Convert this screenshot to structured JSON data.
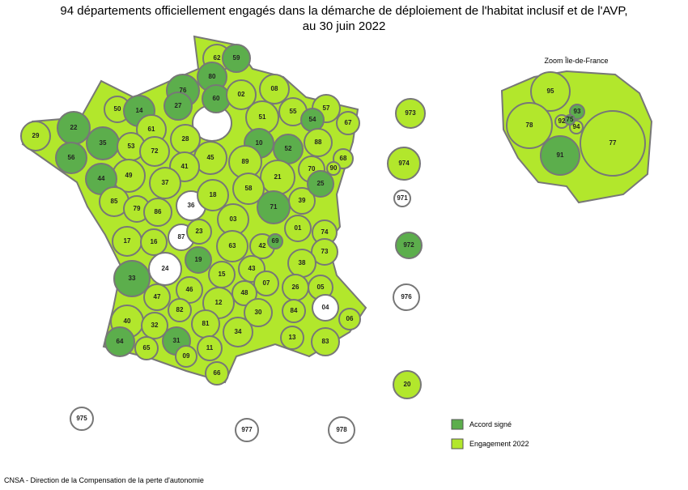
{
  "title": [
    "94 départements officiellement engagés dans la démarche de déploiement de l'habitat inclusif et de l'AVP,",
    "au 30 juin 2022"
  ],
  "zoom_label": "Zoom Île-de-France",
  "legend": [
    {
      "label": "Accord signé",
      "color": "#5cae4c"
    },
    {
      "label": "Engagement 2022",
      "color": "#b2e72c"
    }
  ],
  "source": "CNSA - Direction de la Compensation de la perte d'autonomie",
  "departments": [
    {
      "code": "62",
      "color": "#b2e72c"
    },
    {
      "code": "59",
      "color": "#5cae4c"
    },
    {
      "code": "80",
      "color": "#5cae4c"
    },
    {
      "code": "76",
      "color": "#5cae4c"
    },
    {
      "code": "60",
      "color": "#5cae4c"
    },
    {
      "code": "02",
      "color": "#b2e72c"
    },
    {
      "code": "08",
      "color": "#b2e72c"
    },
    {
      "code": "50",
      "color": "#b2e72c"
    },
    {
      "code": "14",
      "color": "#5cae4c"
    },
    {
      "code": "27",
      "color": "#5cae4c"
    },
    {
      "code": "55",
      "color": "#b2e72c"
    },
    {
      "code": "57",
      "color": "#b2e72c"
    },
    {
      "code": "54",
      "color": "#5cae4c"
    },
    {
      "code": "67",
      "color": "#b2e72c"
    },
    {
      "code": "22",
      "color": "#5cae4c"
    },
    {
      "code": "29",
      "color": "#b2e72c"
    },
    {
      "code": "61",
      "color": "#b2e72c"
    },
    {
      "code": "28",
      "color": "#b2e72c"
    },
    {
      "code": "51",
      "color": "#b2e72c"
    },
    {
      "code": "10",
      "color": "#5cae4c"
    },
    {
      "code": "52",
      "color": "#5cae4c"
    },
    {
      "code": "88",
      "color": "#b2e72c"
    },
    {
      "code": "35",
      "color": "#5cae4c"
    },
    {
      "code": "53",
      "color": "#b2e72c"
    },
    {
      "code": "72",
      "color": "#b2e72c"
    },
    {
      "code": "45",
      "color": "#b2e72c"
    },
    {
      "code": "89",
      "color": "#b2e72c"
    },
    {
      "code": "70",
      "color": "#b2e72c"
    },
    {
      "code": "68",
      "color": "#b2e72c"
    },
    {
      "code": "90",
      "color": "#b2e72c"
    },
    {
      "code": "56",
      "color": "#5cae4c"
    },
    {
      "code": "49",
      "color": "#b2e72c"
    },
    {
      "code": "41",
      "color": "#b2e72c"
    },
    {
      "code": "21",
      "color": "#b2e72c"
    },
    {
      "code": "44",
      "color": "#5cae4c"
    },
    {
      "code": "37",
      "color": "#b2e72c"
    },
    {
      "code": "36",
      "color": "#ffffff"
    },
    {
      "code": "18",
      "color": "#b2e72c"
    },
    {
      "code": "58",
      "color": "#b2e72c"
    },
    {
      "code": "39",
      "color": "#b2e72c"
    },
    {
      "code": "25",
      "color": "#5cae4c"
    },
    {
      "code": "85",
      "color": "#b2e72c"
    },
    {
      "code": "79",
      "color": "#b2e72c"
    },
    {
      "code": "86",
      "color": "#b2e72c"
    },
    {
      "code": "71",
      "color": "#5cae4c"
    },
    {
      "code": "03",
      "color": "#b2e72c"
    },
    {
      "code": "01",
      "color": "#b2e72c"
    },
    {
      "code": "74",
      "color": "#b2e72c"
    },
    {
      "code": "17",
      "color": "#b2e72c"
    },
    {
      "code": "16",
      "color": "#b2e72c"
    },
    {
      "code": "87",
      "color": "#ffffff"
    },
    {
      "code": "23",
      "color": "#b2e72c"
    },
    {
      "code": "63",
      "color": "#b2e72c"
    },
    {
      "code": "42",
      "color": "#b2e72c"
    },
    {
      "code": "69",
      "color": "#5cae4c"
    },
    {
      "code": "73",
      "color": "#b2e72c"
    },
    {
      "code": "24",
      "color": "#ffffff"
    },
    {
      "code": "19",
      "color": "#5cae4c"
    },
    {
      "code": "38",
      "color": "#b2e72c"
    },
    {
      "code": "15",
      "color": "#b2e72c"
    },
    {
      "code": "43",
      "color": "#b2e72c"
    },
    {
      "code": "07",
      "color": "#b2e72c"
    },
    {
      "code": "26",
      "color": "#b2e72c"
    },
    {
      "code": "05",
      "color": "#b2e72c"
    },
    {
      "code": "33",
      "color": "#5cae4c"
    },
    {
      "code": "47",
      "color": "#b2e72c"
    },
    {
      "code": "46",
      "color": "#b2e72c"
    },
    {
      "code": "48",
      "color": "#b2e72c"
    },
    {
      "code": "04",
      "color": "#ffffff"
    },
    {
      "code": "06",
      "color": "#b2e72c"
    },
    {
      "code": "12",
      "color": "#b2e72c"
    },
    {
      "code": "82",
      "color": "#b2e72c"
    },
    {
      "code": "84",
      "color": "#b2e72c"
    },
    {
      "code": "40",
      "color": "#b2e72c"
    },
    {
      "code": "32",
      "color": "#b2e72c"
    },
    {
      "code": "81",
      "color": "#b2e72c"
    },
    {
      "code": "30",
      "color": "#b2e72c"
    },
    {
      "code": "13",
      "color": "#b2e72c"
    },
    {
      "code": "83",
      "color": "#b2e72c"
    },
    {
      "code": "64",
      "color": "#5cae4c"
    },
    {
      "code": "65",
      "color": "#b2e72c"
    },
    {
      "code": "31",
      "color": "#5cae4c"
    },
    {
      "code": "09",
      "color": "#b2e72c"
    },
    {
      "code": "11",
      "color": "#b2e72c"
    },
    {
      "code": "34",
      "color": "#b2e72c"
    },
    {
      "code": "66",
      "color": "#b2e72c"
    },
    {
      "code": "20",
      "color": "#b2e72c"
    },
    {
      "code": "973",
      "color": "#b2e72c"
    },
    {
      "code": "974",
      "color": "#b2e72c"
    },
    {
      "code": "971",
      "color": "#ffffff"
    },
    {
      "code": "972",
      "color": "#5cae4c"
    },
    {
      "code": "976",
      "color": "#ffffff"
    },
    {
      "code": "975",
      "color": "#ffffff"
    },
    {
      "code": "977",
      "color": "#ffffff"
    },
    {
      "code": "978",
      "color": "#ffffff"
    },
    {
      "code": "95",
      "color": "#b2e72c"
    },
    {
      "code": "78",
      "color": "#b2e72c"
    },
    {
      "code": "91",
      "color": "#5cae4c"
    },
    {
      "code": "77",
      "color": "#b2e72c"
    },
    {
      "code": "93",
      "color": "#5cae4c"
    },
    {
      "code": "92",
      "color": "#b2e72c"
    },
    {
      "code": "94",
      "color": "#b2e72c"
    },
    {
      "code": "75",
      "color": "#5cae4c"
    }
  ]
}
